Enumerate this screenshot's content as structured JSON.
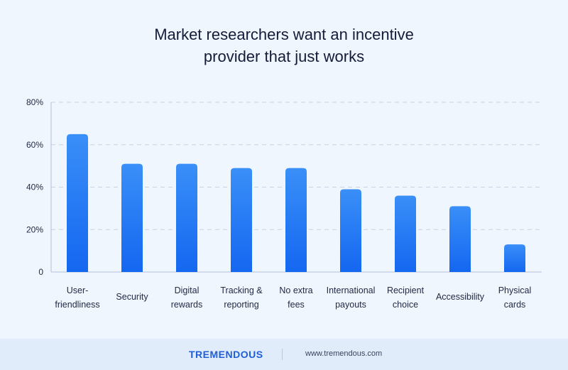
{
  "title_lines": [
    "Market researchers want an incentive",
    "provider that just works"
  ],
  "footer": {
    "brand": "TREMENDOUS",
    "url": "www.tremendous.com"
  },
  "colors": {
    "bar_top": "#3a8ff8",
    "bar_bottom": "#1467f0",
    "grid": "#c7d2e2",
    "background": "#f0f6fe",
    "brand": "#1e5ed8"
  },
  "chart_data": {
    "type": "bar",
    "title": "Market researchers want an incentive provider that just works",
    "categories": [
      [
        "User-",
        "friendliness"
      ],
      [
        "Security"
      ],
      [
        "Digital",
        "rewards"
      ],
      [
        "Tracking &",
        "reporting"
      ],
      [
        "No extra",
        "fees"
      ],
      [
        "International",
        "payouts"
      ],
      [
        "Recipient",
        "choice"
      ],
      [
        "Accessibility"
      ],
      [
        "Physical",
        "cards"
      ]
    ],
    "values": [
      65,
      51,
      51,
      49,
      49,
      39,
      36,
      31,
      13
    ],
    "unit": "%",
    "ylim": [
      0,
      80
    ],
    "yticks": [
      0,
      20,
      40,
      60,
      80
    ],
    "ytick_labels": [
      "0",
      "20%",
      "40%",
      "60%",
      "80%"
    ],
    "grid": "dashed horizontal",
    "legend": "none"
  }
}
